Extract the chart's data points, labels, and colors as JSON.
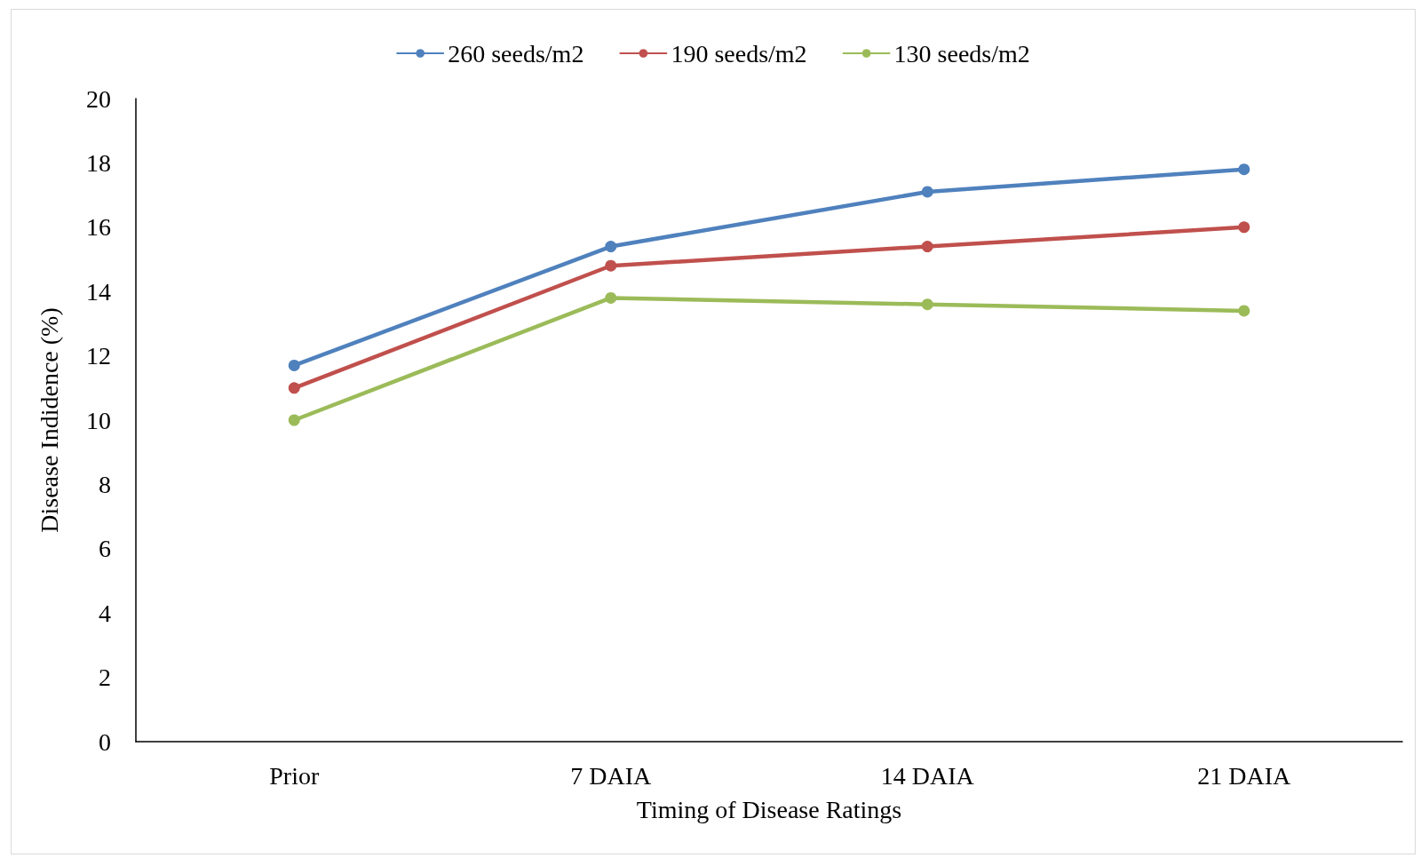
{
  "chart_data": {
    "type": "line",
    "xlabel": "Timing of Disease Ratings",
    "ylabel": "Disease Indidence (%)",
    "categories": [
      "Prior",
      "7 DAIA",
      "14 DAIA",
      "21 DAIA"
    ],
    "series": [
      {
        "name": "260 seeds/m2",
        "color": "#4f81bd",
        "values": [
          11.7,
          15.4,
          17.1,
          17.8
        ]
      },
      {
        "name": "190 seeds/m2",
        "color": "#c0504d",
        "values": [
          11.0,
          14.8,
          15.4,
          16.0
        ]
      },
      {
        "name": "130 seeds/m2",
        "color": "#9bbb59",
        "values": [
          10.0,
          13.8,
          13.6,
          13.4
        ]
      }
    ],
    "ylim": [
      0,
      20
    ],
    "yticks": [
      0,
      2,
      4,
      6,
      8,
      10,
      12,
      14,
      16,
      18,
      20
    ],
    "grid": false,
    "legend": "top",
    "marker": "circle",
    "line_style": "solid"
  }
}
